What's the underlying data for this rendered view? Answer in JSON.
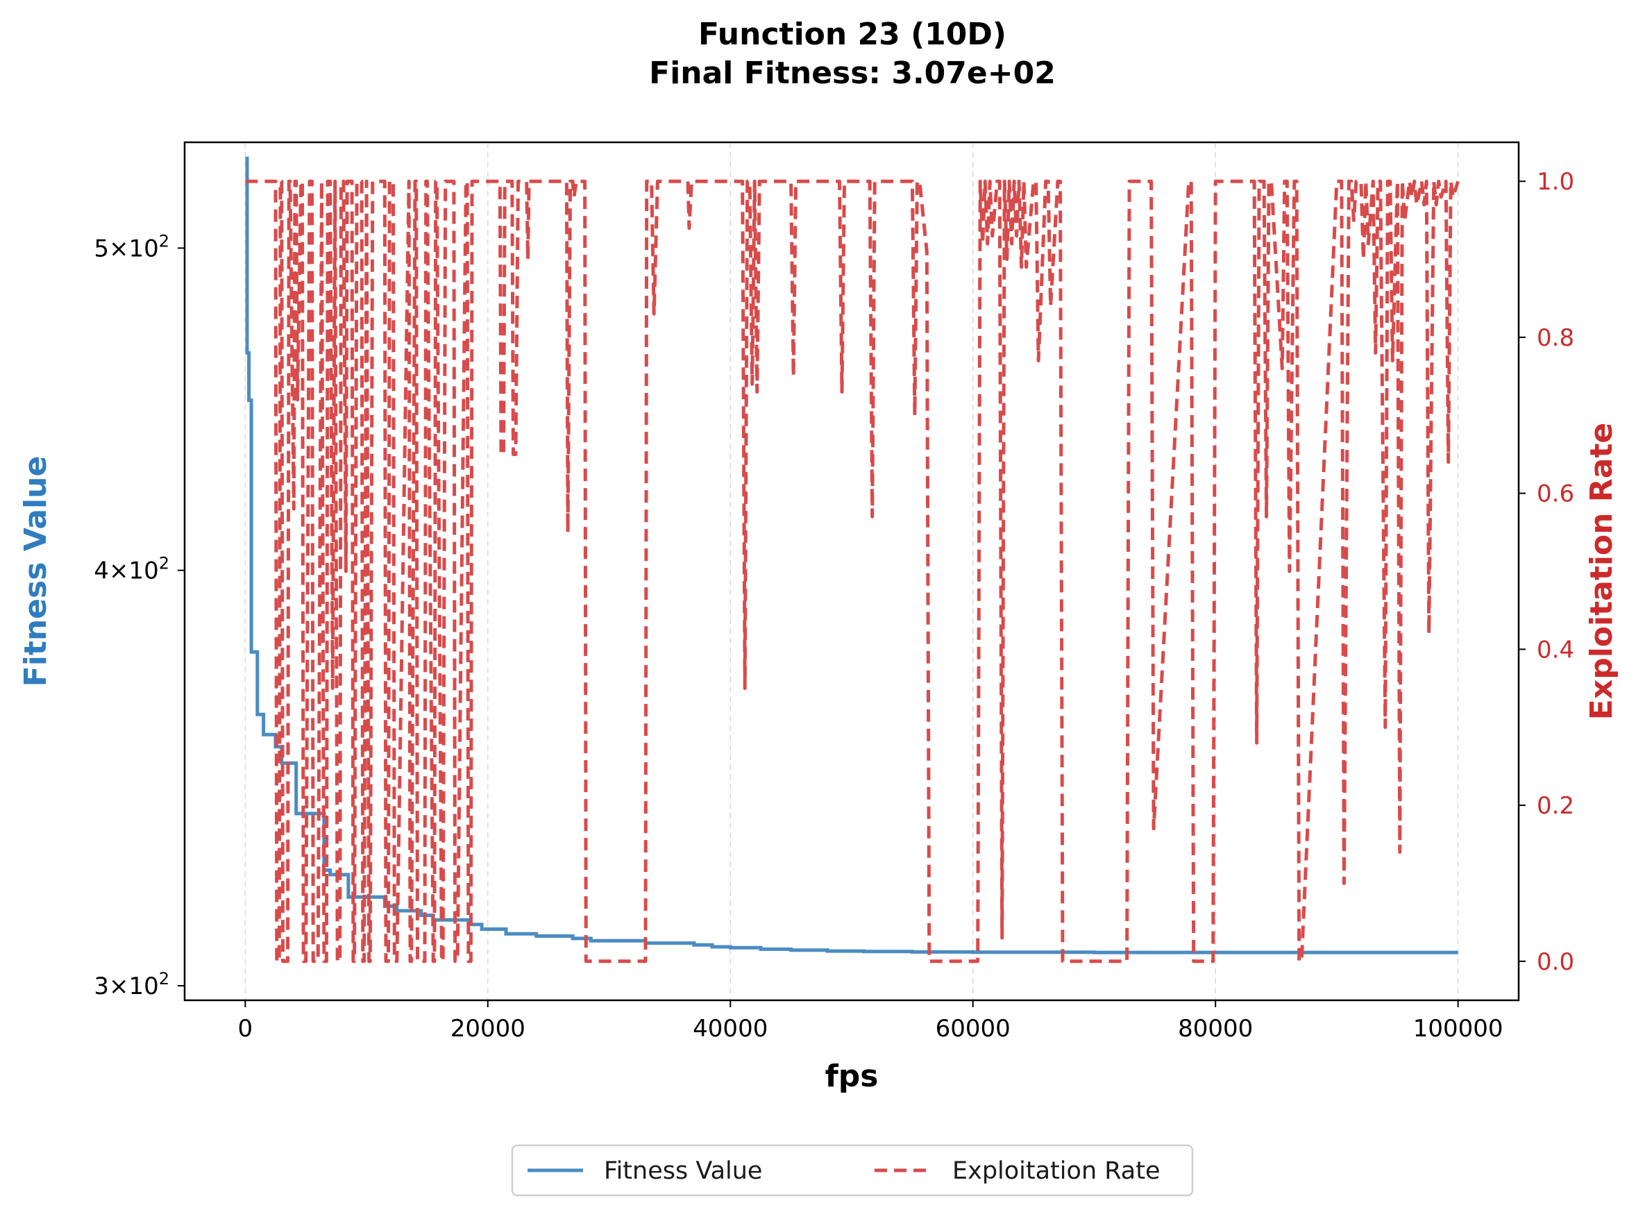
{
  "colors": {
    "fitness": "#4a8cc2",
    "exploitation": "#d84b4b",
    "fitness_label": "#2f7cbf",
    "exploitation_label": "#cc2a2a",
    "grid": "#d9d9d9"
  },
  "chart_data": {
    "type": "line",
    "title": "Function 23 (10D)",
    "subtitle": "Final Fitness: 3.07e+02",
    "xlabel": "fps",
    "ylabel_left": "Fitness Value",
    "ylabel_right": "Exploitation Rate",
    "xlim": [
      -5000,
      105000
    ],
    "x_ticks": [
      0,
      20000,
      40000,
      60000,
      80000,
      100000
    ],
    "x_tick_labels": [
      "0",
      "20000",
      "40000",
      "60000",
      "80000",
      "100000"
    ],
    "ylim_left": [
      297,
      538
    ],
    "y_scale_left": "log",
    "y_ticks_left": [
      {
        "value": 500,
        "mantissa": "5",
        "base": "10",
        "exp": "2"
      },
      {
        "value": 400,
        "mantissa": "4",
        "base": "10",
        "exp": "2"
      },
      {
        "value": 300,
        "mantissa": "3",
        "base": "10",
        "exp": "2"
      }
    ],
    "ylim_right": [
      -0.05,
      1.05
    ],
    "y_ticks_right": [
      0.0,
      0.2,
      0.4,
      0.6,
      0.8,
      1.0
    ],
    "y_tick_labels_right": [
      "0.0",
      "0.2",
      "0.4",
      "0.6",
      "0.8",
      "1.0"
    ],
    "grid": "vertical-dashed",
    "legend_position": "bottom-center",
    "series": [
      {
        "name": "Fitness Value",
        "axis": "left",
        "style": "solid-step",
        "x": [
          0,
          150,
          300,
          500,
          1000,
          1500,
          2500,
          3000,
          4200,
          5500,
          6500,
          7000,
          8500,
          10000,
          11500,
          12500,
          13500,
          14500,
          15500,
          17000,
          18500,
          19500,
          20500,
          21500,
          22500,
          24000,
          25500,
          27000,
          28500,
          30000,
          31500,
          33000,
          35000,
          37000,
          38500,
          40000,
          42500,
          45000,
          48000,
          51000,
          55000,
          60000,
          70000,
          80000,
          90000,
          100000
        ],
        "y": [
          532,
          465,
          450,
          378,
          362,
          357,
          354,
          350,
          338,
          338,
          325,
          324,
          319,
          319,
          317,
          316,
          316,
          315,
          314,
          314,
          313,
          312,
          312,
          311,
          311,
          310.5,
          310.5,
          310,
          309.5,
          309.5,
          309.5,
          309,
          309,
          308.6,
          308.2,
          308,
          307.7,
          307.5,
          307.3,
          307.2,
          307.1,
          307.05,
          307,
          307,
          307,
          307
        ]
      },
      {
        "name": "Exploitation Rate",
        "axis": "right",
        "style": "dashed",
        "x": [
          0,
          2500,
          2600,
          2800,
          2900,
          3000,
          3100,
          3500,
          3600,
          3700,
          4000,
          4100,
          4200,
          4300,
          4600,
          4700,
          4800,
          5000,
          5300,
          5500,
          5600,
          6000,
          6300,
          6500,
          6700,
          6800,
          7000,
          7200,
          7400,
          7600,
          7800,
          7900,
          8100,
          8300,
          8400,
          8800,
          8900,
          9000,
          9200,
          9600,
          9700,
          9800,
          10000,
          10200,
          10300,
          10500,
          11500,
          11600,
          11800,
          11900,
          12200,
          12300,
          12500,
          13500,
          13600,
          13700,
          14000,
          14100,
          14200,
          14800,
          14900,
          15000,
          15500,
          15600,
          15700,
          15800,
          16200,
          16300,
          16500,
          17200,
          17300,
          17500,
          18200,
          18300,
          18400,
          18600,
          18700,
          18800,
          19000,
          21000,
          21100,
          21300,
          21400,
          21600,
          22000,
          22100,
          22300,
          22500,
          22700,
          23200,
          23300,
          23400,
          23600,
          23700,
          26500,
          26600,
          26800,
          27000,
          27100,
          27300,
          27500,
          28000,
          28100,
          28300,
          28500,
          28600,
          33000,
          33100,
          33300,
          33500,
          33700,
          34000,
          34100,
          34300,
          36500,
          36600,
          36800,
          37000,
          41000,
          41200,
          41400,
          41600,
          41800,
          42000,
          42200,
          42400,
          42600,
          42800,
          45000,
          45200,
          45400,
          45600,
          49000,
          49200,
          49400,
          49600,
          51500,
          51700,
          51900,
          52100,
          55000,
          55200,
          55400,
          55600,
          56200,
          56400,
          56600,
          56800,
          60000,
          60200,
          60400,
          60600,
          60800,
          61000,
          61200,
          61400,
          61600,
          62000,
          62200,
          62400,
          62600,
          62800,
          63000,
          63200,
          63400,
          63600,
          63800,
          64000,
          64200,
          64400,
          65000,
          65200,
          65400,
          66000,
          66200,
          66400,
          67000,
          67200,
          67400,
          72500,
          72700,
          72900,
          74500,
          74700,
          74900,
          77800,
          78000,
          78200,
          79600,
          79800,
          80000,
          83000,
          83200,
          83400,
          83600,
          84000,
          84200,
          84400,
          84600,
          85500,
          85700,
          85900,
          86100,
          86500,
          86700,
          86900,
          87100,
          90000,
          90200,
          90400,
          90600,
          91000,
          91200,
          91400,
          91600,
          92000,
          92200,
          92400,
          92600,
          93000,
          93200,
          93400,
          93600,
          94000,
          94200,
          94400,
          94600,
          95000,
          95200,
          95400,
          95600,
          96000,
          96200,
          96400,
          96600,
          97000,
          97200,
          97400,
          97600,
          98000,
          98200,
          98400,
          98600,
          99000,
          99200,
          99400,
          99600,
          100000
        ],
        "y": [
          1.0,
          1.0,
          0.0,
          0.0,
          1.0,
          1.0,
          0.0,
          0.0,
          1.0,
          1.0,
          0.58,
          1.0,
          1.0,
          0.72,
          1.0,
          1.0,
          0.0,
          0.0,
          1.0,
          1.0,
          0.0,
          0.0,
          1.0,
          0.0,
          0.0,
          1.0,
          1.0,
          0.35,
          1.0,
          0.0,
          0.0,
          1.0,
          1.0,
          0.5,
          1.0,
          1.0,
          0.0,
          0.0,
          1.0,
          1.0,
          0.0,
          0.0,
          1.0,
          0.0,
          0.0,
          1.0,
          1.0,
          0.0,
          0.0,
          1.0,
          1.0,
          0.0,
          0.0,
          1.0,
          0.0,
          0.0,
          1.0,
          1.0,
          0.0,
          0.0,
          1.0,
          1.0,
          0.0,
          0.0,
          1.0,
          1.0,
          0.0,
          0.0,
          1.0,
          1.0,
          0.0,
          0.0,
          1.0,
          1.0,
          0.0,
          0.0,
          1.0,
          1.0,
          1.0,
          1.0,
          0.65,
          0.65,
          1.0,
          1.0,
          1.0,
          0.65,
          0.65,
          1.0,
          1.0,
          1.0,
          0.9,
          1.0,
          1.0,
          1.0,
          1.0,
          0.55,
          1.0,
          1.0,
          0.98,
          1.0,
          1.0,
          1.0,
          0.0,
          0.0,
          0.0,
          0.0,
          0.0,
          1.0,
          1.0,
          1.0,
          0.83,
          1.0,
          1.0,
          1.0,
          1.0,
          0.94,
          1.0,
          1.0,
          1.0,
          0.35,
          1.0,
          1.0,
          0.74,
          1.0,
          0.73,
          1.0,
          1.0,
          1.0,
          1.0,
          0.75,
          1.0,
          1.0,
          1.0,
          0.73,
          1.0,
          1.0,
          1.0,
          0.57,
          1.0,
          1.0,
          1.0,
          0.7,
          1.0,
          1.0,
          0.91,
          0.0,
          0.0,
          0.0,
          0.0,
          0.0,
          0.0,
          1.0,
          0.92,
          1.0,
          0.92,
          1.0,
          0.93,
          1.0,
          1.0,
          0.03,
          1.0,
          0.9,
          1.0,
          0.92,
          1.0,
          0.93,
          1.0,
          0.89,
          1.0,
          0.89,
          1.0,
          1.0,
          0.77,
          1.0,
          1.0,
          0.84,
          1.0,
          1.0,
          0.0,
          0.0,
          0.0,
          1.0,
          1.0,
          1.0,
          0.17,
          1.0,
          1.0,
          0.0,
          0.0,
          0.0,
          1.0,
          1.0,
          1.0,
          0.28,
          1.0,
          1.0,
          0.57,
          1.0,
          1.0,
          0.76,
          1.0,
          1.0,
          0.5,
          1.0,
          1.0,
          0.0,
          0.0,
          1.0,
          1.0,
          1.0,
          0.1,
          1.0,
          1.0,
          0.95,
          1.0,
          1.0,
          0.9,
          1.0,
          0.92,
          1.0,
          0.78,
          1.0,
          1.0,
          0.3,
          1.0,
          1.0,
          0.77,
          1.0,
          0.14,
          1.0,
          0.95,
          1.0,
          0.98,
          1.0,
          0.97,
          1.0,
          0.97,
          1.0,
          0.42,
          1.0,
          0.97,
          1.0,
          0.98,
          1.0,
          0.64,
          1.0,
          0.98,
          1.0
        ]
      }
    ]
  }
}
